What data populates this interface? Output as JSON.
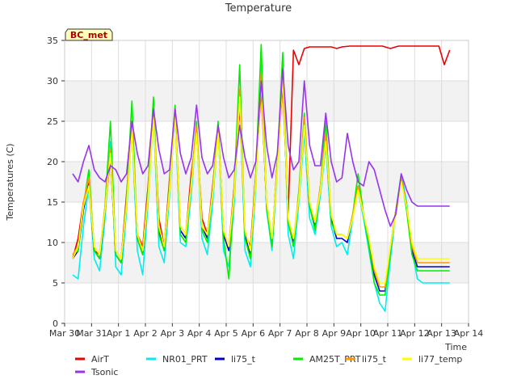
{
  "chart_data": {
    "type": "line",
    "title": "Temperature",
    "xlabel": "Time",
    "ylabel": "Temperatures (C)",
    "station_label": "BC_met",
    "x_range": [
      "Mar 30",
      "Apr 14"
    ],
    "x_ticks": [
      "Mar 30",
      "Mar 31",
      "Apr 1",
      "Apr 2",
      "Apr 3",
      "Apr 4",
      "Apr 5",
      "Apr 6",
      "Apr 7",
      "Apr 8",
      "Apr 9",
      "Apr 10",
      "Apr 11",
      "Apr 12",
      "Apr 13",
      "Apr 14"
    ],
    "ylim": [
      0,
      35
    ],
    "y_ticks": [
      0,
      5,
      10,
      15,
      20,
      25,
      30,
      35
    ],
    "y_bands": [
      [
        5,
        10
      ],
      [
        15,
        20
      ],
      [
        25,
        30
      ]
    ],
    "band_color": "#f2f2f2",
    "grid_color": "#dddddd",
    "legend_position": "bottom",
    "series": [
      {
        "name": "AirT",
        "color": "#ee0000",
        "x": [
          0.3,
          0.5,
          0.7,
          0.9,
          1.1,
          1.3,
          1.5,
          1.7,
          1.9,
          2.1,
          2.3,
          2.5,
          2.7,
          2.9,
          3.1,
          3.3,
          3.5,
          3.7,
          3.9,
          4.1,
          4.3,
          4.5,
          4.7,
          4.9,
          5.1,
          5.3,
          5.5,
          5.7,
          5.9,
          6.1,
          6.3,
          6.5,
          6.7,
          6.9,
          7.1,
          7.3,
          7.5,
          7.7,
          7.9,
          8.1,
          8.3,
          8.5,
          8.7,
          8.9,
          9.1,
          9.3,
          9.5,
          9.7,
          9.9,
          10.1,
          10.3,
          10.6,
          10.9,
          11.2,
          11.5,
          11.8,
          12.1,
          12.4,
          12.7,
          13.0,
          13.3,
          13.6,
          13.9,
          14.1,
          14.3
        ],
        "y": [
          8.0,
          10.5,
          15.0,
          17.0,
          9.0,
          8.5,
          14.0,
          20.5,
          9.0,
          8.0,
          16.0,
          24.0,
          11.0,
          9.5,
          17.0,
          26.0,
          13.0,
          9.5,
          18.0,
          26.0,
          12.0,
          11.0,
          18.5,
          23.5,
          13.0,
          11.0,
          17.0,
          24.0,
          11.5,
          9.5,
          17.0,
          27.0,
          11.0,
          9.5,
          18.5,
          29.0,
          15.0,
          10.0,
          20.0,
          29.5,
          13.5,
          33.8,
          32.0,
          34.0,
          34.2,
          34.2,
          34.2,
          34.2,
          34.2,
          34.0,
          34.2,
          34.3,
          34.3,
          34.3,
          34.3,
          34.3,
          34.0,
          34.3,
          34.3,
          34.3,
          34.3,
          34.3,
          34.3,
          32.0,
          33.8
        ]
      },
      {
        "name": "NR01_PRT",
        "color": "#00eeee",
        "x": [
          0.3,
          0.5,
          0.7,
          0.9,
          1.1,
          1.3,
          1.5,
          1.7,
          1.9,
          2.1,
          2.3,
          2.5,
          2.7,
          2.9,
          3.1,
          3.3,
          3.5,
          3.7,
          3.9,
          4.1,
          4.3,
          4.5,
          4.7,
          4.9,
          5.1,
          5.3,
          5.5,
          5.7,
          5.9,
          6.1,
          6.3,
          6.5,
          6.7,
          6.9,
          7.1,
          7.3,
          7.5,
          7.7,
          7.9,
          8.1,
          8.3,
          8.5,
          8.7,
          8.9,
          9.1,
          9.3,
          9.5,
          9.7,
          9.9,
          10.1,
          10.3,
          10.5,
          10.7,
          10.9,
          11.1,
          11.3,
          11.5,
          11.7,
          11.9,
          12.1,
          12.3,
          12.5,
          12.7,
          12.9,
          13.1,
          13.3,
          13.5,
          13.7,
          13.9,
          14.1,
          14.3
        ],
        "y": [
          6.0,
          5.5,
          12.0,
          17.0,
          8.0,
          6.5,
          13.0,
          22.5,
          7.0,
          6.0,
          14.0,
          24.0,
          9.0,
          6.0,
          15.0,
          25.5,
          9.5,
          7.5,
          16.0,
          25.5,
          10.0,
          9.5,
          16.0,
          24.0,
          10.5,
          8.5,
          15.0,
          24.0,
          9.0,
          7.0,
          15.0,
          28.5,
          9.0,
          7.0,
          17.0,
          32.0,
          14.0,
          9.0,
          19.0,
          32.0,
          11.0,
          8.0,
          15.0,
          23.5,
          13.0,
          11.0,
          16.0,
          22.0,
          12.0,
          9.5,
          10.0,
          8.5,
          13.0,
          16.5,
          13.0,
          9.0,
          5.0,
          2.5,
          1.5,
          8.0,
          14.0,
          18.5,
          15.0,
          9.0,
          5.5,
          5.0,
          5.0,
          5.0,
          5.0,
          5.0,
          5.0
        ]
      },
      {
        "name": "li75_t",
        "color": "#0000cc",
        "x": [
          0.3,
          0.5,
          0.7,
          0.9,
          1.1,
          1.3,
          1.5,
          1.7,
          1.9,
          2.1,
          2.3,
          2.5,
          2.7,
          2.9,
          3.1,
          3.3,
          3.5,
          3.7,
          3.9,
          4.1,
          4.3,
          4.5,
          4.7,
          4.9,
          5.1,
          5.3,
          5.5,
          5.7,
          5.9,
          6.1,
          6.3,
          6.5,
          6.7,
          6.9,
          7.1,
          7.3,
          7.5,
          7.7,
          7.9,
          8.1,
          8.3,
          8.5,
          8.7,
          8.9,
          9.1,
          9.3,
          9.5,
          9.7,
          9.9,
          10.1,
          10.3,
          10.5,
          10.7,
          10.9,
          11.1,
          11.3,
          11.5,
          11.7,
          11.9,
          12.1,
          12.3,
          12.5,
          12.7,
          12.9,
          13.1,
          13.3,
          13.5,
          13.7,
          13.9,
          14.1,
          14.3
        ],
        "y": [
          8.0,
          9.0,
          14.0,
          17.5,
          9.0,
          8.0,
          14.0,
          21.0,
          8.5,
          7.5,
          15.0,
          24.5,
          10.5,
          8.5,
          16.0,
          26.0,
          11.5,
          9.0,
          17.0,
          26.0,
          11.5,
          10.5,
          17.5,
          24.0,
          12.0,
          10.5,
          16.5,
          24.0,
          11.0,
          9.0,
          16.5,
          28.5,
          11.0,
          8.5,
          18.0,
          30.5,
          14.5,
          10.0,
          19.5,
          31.0,
          12.5,
          10.0,
          16.0,
          25.0,
          14.5,
          12.0,
          17.0,
          23.0,
          13.0,
          10.5,
          10.5,
          10.0,
          13.5,
          17.0,
          13.5,
          10.0,
          6.0,
          4.0,
          4.0,
          9.0,
          14.0,
          18.0,
          14.5,
          9.0,
          7.0,
          7.0,
          7.0,
          7.0,
          7.0,
          7.0,
          7.0
        ]
      },
      {
        "name": "AM25T_PRT",
        "color": "#00ee00",
        "x": [
          0.3,
          0.5,
          0.7,
          0.9,
          1.1,
          1.3,
          1.5,
          1.7,
          1.9,
          2.1,
          2.3,
          2.5,
          2.7,
          2.9,
          3.1,
          3.3,
          3.5,
          3.7,
          3.9,
          4.1,
          4.3,
          4.5,
          4.7,
          4.9,
          5.1,
          5.3,
          5.5,
          5.7,
          5.9,
          6.1,
          6.3,
          6.5,
          6.7,
          6.9,
          7.1,
          7.3,
          7.5,
          7.7,
          7.9,
          8.1,
          8.3,
          8.5,
          8.7,
          8.9,
          9.1,
          9.3,
          9.5,
          9.7,
          9.9,
          10.1,
          10.3,
          10.5,
          10.7,
          10.9,
          11.1,
          11.3,
          11.5,
          11.7,
          11.9,
          12.1,
          12.3,
          12.5,
          12.7,
          12.9,
          13.1,
          13.3,
          13.5,
          13.7,
          13.9,
          14.1,
          14.3
        ],
        "y": [
          8.5,
          9.0,
          14.5,
          19.0,
          9.0,
          8.0,
          14.5,
          25.0,
          8.5,
          7.5,
          15.5,
          27.5,
          10.5,
          8.5,
          16.5,
          28.0,
          11.0,
          9.0,
          17.5,
          27.0,
          11.0,
          10.0,
          17.5,
          25.0,
          11.5,
          10.0,
          16.5,
          25.0,
          10.5,
          5.5,
          17.0,
          32.0,
          10.5,
          8.0,
          18.5,
          34.5,
          14.5,
          9.5,
          20.0,
          33.5,
          12.5,
          9.5,
          16.5,
          26.0,
          14.5,
          11.5,
          17.0,
          25.0,
          12.5,
          11.0,
          11.0,
          10.5,
          13.5,
          18.5,
          13.5,
          9.5,
          5.0,
          3.5,
          3.5,
          9.0,
          14.0,
          18.0,
          14.0,
          8.5,
          6.5,
          6.5,
          6.5,
          6.5,
          6.5,
          6.5,
          6.5
        ]
      },
      {
        "name": "li75_t",
        "color": "#ff9900",
        "x": [
          0.3,
          0.5,
          0.7,
          0.9,
          1.1,
          1.3,
          1.5,
          1.7,
          1.9,
          2.1,
          2.3,
          2.5,
          2.7,
          2.9,
          3.1,
          3.3,
          3.5,
          3.7,
          3.9,
          4.1,
          4.3,
          4.5,
          4.7,
          4.9,
          5.1,
          5.3,
          5.5,
          5.7,
          5.9,
          6.1,
          6.3,
          6.5,
          6.7,
          6.9,
          7.1,
          7.3,
          7.5,
          7.7,
          7.9,
          8.1,
          8.3,
          8.5,
          8.7,
          8.9,
          9.1,
          9.3,
          9.5,
          9.7,
          9.9,
          10.1,
          10.3,
          10.5,
          10.7,
          10.9,
          11.1,
          11.3,
          11.5,
          11.7,
          11.9,
          12.1,
          12.3,
          12.5,
          12.7,
          12.9,
          13.1,
          13.3,
          13.5,
          13.7,
          13.9,
          14.1,
          14.3
        ],
        "y": [
          8.5,
          9.5,
          15.0,
          18.0,
          9.5,
          8.5,
          14.5,
          21.5,
          9.0,
          8.0,
          15.0,
          25.0,
          11.0,
          9.0,
          16.0,
          26.5,
          12.0,
          9.5,
          17.0,
          26.5,
          12.0,
          11.0,
          17.5,
          24.5,
          12.0,
          11.0,
          16.5,
          24.0,
          11.5,
          9.5,
          16.5,
          29.0,
          11.5,
          9.0,
          18.0,
          31.0,
          15.0,
          10.5,
          19.5,
          31.5,
          13.0,
          10.5,
          16.0,
          25.5,
          15.0,
          12.5,
          17.0,
          23.5,
          13.5,
          11.0,
          11.0,
          10.5,
          13.5,
          17.0,
          13.5,
          10.5,
          6.5,
          4.5,
          4.5,
          9.5,
          14.0,
          18.0,
          14.5,
          9.5,
          7.5,
          7.5,
          7.5,
          7.5,
          7.5,
          7.5,
          7.5
        ]
      },
      {
        "name": "li77_temp",
        "color": "#ffff00",
        "x": [
          0.3,
          0.5,
          0.7,
          0.9,
          1.1,
          1.3,
          1.5,
          1.7,
          1.9,
          2.1,
          2.3,
          2.5,
          2.7,
          2.9,
          3.1,
          3.3,
          3.5,
          3.7,
          3.9,
          4.1,
          4.3,
          4.5,
          4.7,
          4.9,
          5.1,
          5.3,
          5.5,
          5.7,
          5.9,
          6.1,
          6.3,
          6.5,
          6.7,
          6.9,
          7.1,
          7.3,
          7.5,
          7.7,
          7.9,
          8.1,
          8.3,
          8.5,
          8.7,
          8.9,
          9.1,
          9.3,
          9.5,
          9.7,
          9.9,
          10.1,
          10.3,
          10.5,
          10.7,
          10.9,
          11.1,
          11.3,
          11.5,
          11.7,
          11.9,
          12.1,
          12.3,
          12.5,
          12.7,
          12.9,
          13.1,
          13.3,
          13.5,
          13.7,
          13.9,
          14.1,
          14.3
        ],
        "y": [
          8.0,
          9.5,
          14.5,
          17.0,
          9.5,
          8.5,
          14.0,
          21.0,
          9.0,
          8.0,
          14.5,
          24.0,
          11.0,
          9.0,
          15.5,
          25.5,
          12.0,
          9.5,
          16.5,
          25.5,
          12.0,
          11.0,
          17.0,
          23.5,
          12.0,
          11.0,
          16.0,
          23.5,
          11.5,
          9.5,
          16.0,
          28.0,
          11.5,
          9.0,
          17.5,
          30.0,
          15.0,
          10.5,
          19.0,
          30.5,
          13.0,
          10.5,
          15.5,
          24.5,
          15.0,
          12.5,
          16.5,
          22.5,
          13.5,
          11.0,
          11.0,
          10.5,
          13.0,
          16.5,
          13.5,
          10.5,
          7.0,
          5.0,
          5.0,
          9.5,
          13.5,
          17.5,
          14.5,
          10.0,
          8.0,
          8.0,
          8.0,
          8.0,
          8.0,
          8.0,
          8.0
        ]
      },
      {
        "name": "Tsonic",
        "color": "#9933ee",
        "x": [
          0.3,
          0.5,
          0.7,
          0.9,
          1.1,
          1.3,
          1.5,
          1.7,
          1.9,
          2.1,
          2.3,
          2.5,
          2.7,
          2.9,
          3.1,
          3.3,
          3.5,
          3.7,
          3.9,
          4.1,
          4.3,
          4.5,
          4.7,
          4.9,
          5.1,
          5.3,
          5.5,
          5.7,
          5.9,
          6.1,
          6.3,
          6.5,
          6.7,
          6.9,
          7.1,
          7.3,
          7.5,
          7.7,
          7.9,
          8.1,
          8.3,
          8.5,
          8.7,
          8.9,
          9.1,
          9.3,
          9.5,
          9.7,
          9.9,
          10.1,
          10.3,
          10.5,
          10.7,
          10.9,
          11.1,
          11.3,
          11.5,
          11.7,
          11.9,
          12.1,
          12.3,
          12.5,
          12.7,
          12.9,
          13.1,
          13.3,
          13.5,
          13.7,
          13.9,
          14.1,
          14.3
        ],
        "y": [
          18.5,
          17.5,
          20.0,
          22.0,
          19.0,
          18.0,
          17.5,
          19.5,
          19.0,
          17.5,
          18.5,
          25.0,
          21.0,
          18.5,
          19.5,
          26.5,
          21.5,
          18.5,
          19.0,
          26.5,
          21.0,
          18.5,
          20.5,
          27.0,
          20.5,
          18.5,
          19.5,
          24.5,
          20.5,
          18.0,
          19.0,
          24.5,
          20.5,
          18.0,
          20.0,
          30.0,
          22.0,
          18.0,
          21.0,
          31.5,
          22.0,
          19.0,
          20.0,
          30.0,
          22.0,
          19.5,
          19.5,
          26.0,
          20.0,
          17.5,
          18.0,
          23.5,
          20.0,
          17.5,
          17.0,
          20.0,
          19.0,
          16.5,
          14.0,
          12.0,
          13.5,
          18.5,
          16.5,
          15.0,
          14.5,
          14.5,
          14.5,
          14.5,
          14.5,
          14.5,
          14.5
        ]
      }
    ]
  }
}
